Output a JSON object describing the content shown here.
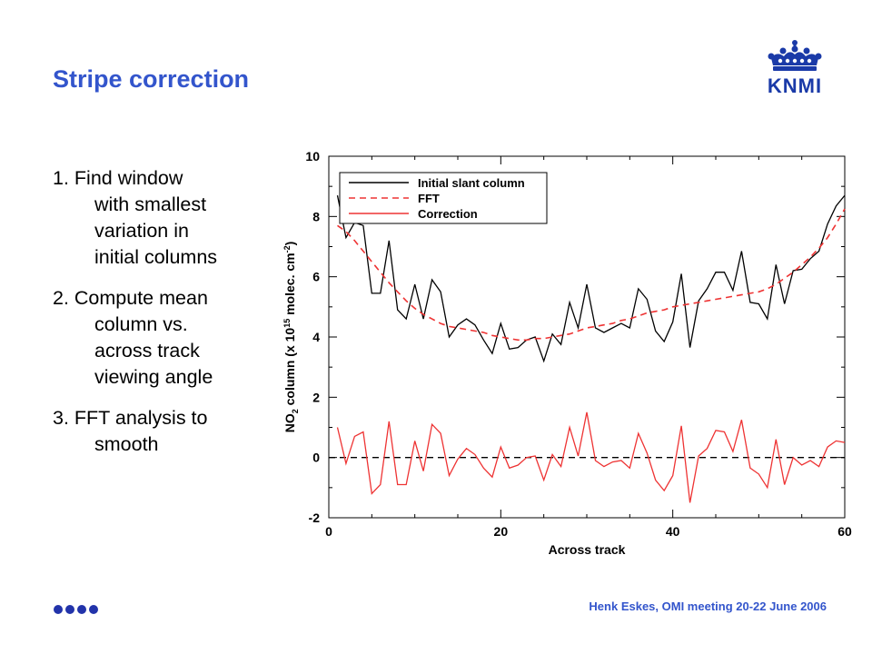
{
  "slide": {
    "title": "Stripe correction",
    "logo_text": "KNMI",
    "footer": "Henk Eskes, OMI meeting 20-22 June 2006"
  },
  "steps": [
    {
      "first": "1. Find window",
      "rest": [
        "with smallest",
        "variation in",
        "initial columns"
      ]
    },
    {
      "first": "2. Compute mean",
      "rest": [
        "column vs.",
        "across track",
        "viewing angle"
      ]
    },
    {
      "first": "3. FFT analysis to",
      "rest": [
        "smooth"
      ]
    }
  ],
  "colors": {
    "title": "#3355cc",
    "initial": "#000000",
    "fft": "#ee3333",
    "correction": "#ee3333"
  },
  "icons": [
    "crown-icon",
    "dot-icon"
  ],
  "chart_data": {
    "type": "line",
    "xlabel": "Across track",
    "ylabel": "NO",
    "ylabel_sub": "2",
    "ylabel_rest": " column (x 10",
    "ylabel_sup": "15",
    "ylabel_units": " molec. cm",
    "ylabel_units_sup": "-2",
    "ylabel_close": ")",
    "xlim": [
      0,
      60
    ],
    "ylim": [
      -2,
      10
    ],
    "xticks": [
      0,
      20,
      40,
      60
    ],
    "yticks": [
      -2,
      0,
      2,
      4,
      6,
      8,
      10
    ],
    "legend_position": "top-left",
    "zero_line": true,
    "series": [
      {
        "name": "Initial slant column",
        "style": "solid",
        "x": [
          1,
          2,
          3,
          4,
          5,
          6,
          7,
          8,
          9,
          10,
          11,
          12,
          13,
          14,
          15,
          16,
          17,
          18,
          19,
          20,
          21,
          22,
          23,
          24,
          25,
          26,
          27,
          28,
          29,
          30,
          31,
          32,
          33,
          34,
          35,
          36,
          37,
          38,
          39,
          40,
          41,
          42,
          43,
          44,
          45,
          46,
          47,
          48,
          49,
          50,
          51,
          52,
          53,
          54,
          55,
          56,
          57,
          58,
          59,
          60
        ],
        "values": [
          8.7,
          7.3,
          7.8,
          7.7,
          5.45,
          5.45,
          7.2,
          4.9,
          4.6,
          5.75,
          4.6,
          5.9,
          5.5,
          4.0,
          4.4,
          4.6,
          4.4,
          3.9,
          3.45,
          4.45,
          3.6,
          3.65,
          3.9,
          4.0,
          3.2,
          4.1,
          3.75,
          5.15,
          4.3,
          5.75,
          4.3,
          4.15,
          4.3,
          4.45,
          4.3,
          5.6,
          5.25,
          4.2,
          3.85,
          4.5,
          6.1,
          3.65,
          5.2,
          5.6,
          6.15,
          6.15,
          5.55,
          6.85,
          5.15,
          5.1,
          4.6,
          6.4,
          5.1,
          6.2,
          6.25,
          6.6,
          6.85,
          7.75,
          8.35,
          8.7
        ]
      },
      {
        "name": "FFT",
        "style": "dashed",
        "x": [
          1,
          2,
          3,
          4,
          5,
          6,
          7,
          8,
          9,
          10,
          11,
          12,
          13,
          14,
          15,
          16,
          17,
          18,
          19,
          20,
          21,
          22,
          23,
          24,
          25,
          26,
          27,
          28,
          29,
          30,
          31,
          32,
          33,
          34,
          35,
          36,
          37,
          38,
          39,
          40,
          41,
          42,
          43,
          44,
          45,
          46,
          47,
          48,
          49,
          50,
          51,
          52,
          53,
          54,
          55,
          56,
          57,
          58,
          59,
          60
        ],
        "values": [
          7.7,
          7.5,
          7.2,
          6.85,
          6.5,
          6.15,
          5.8,
          5.5,
          5.2,
          4.95,
          4.75,
          4.6,
          4.45,
          4.35,
          4.3,
          4.25,
          4.2,
          4.15,
          4.05,
          4.0,
          3.95,
          3.9,
          3.9,
          3.95,
          3.95,
          4.0,
          4.05,
          4.1,
          4.2,
          4.3,
          4.35,
          4.4,
          4.45,
          4.55,
          4.6,
          4.7,
          4.8,
          4.85,
          4.9,
          5.0,
          5.05,
          5.1,
          5.15,
          5.2,
          5.25,
          5.3,
          5.35,
          5.4,
          5.45,
          5.5,
          5.6,
          5.75,
          5.95,
          6.15,
          6.4,
          6.65,
          6.95,
          7.3,
          7.75,
          8.25
        ]
      },
      {
        "name": "Correction",
        "style": "solid",
        "x": [
          1,
          2,
          3,
          4,
          5,
          6,
          7,
          8,
          9,
          10,
          11,
          12,
          13,
          14,
          15,
          16,
          17,
          18,
          19,
          20,
          21,
          22,
          23,
          24,
          25,
          26,
          27,
          28,
          29,
          30,
          31,
          32,
          33,
          34,
          35,
          36,
          37,
          38,
          39,
          40,
          41,
          42,
          43,
          44,
          45,
          46,
          47,
          48,
          49,
          50,
          51,
          52,
          53,
          54,
          55,
          56,
          57,
          58,
          59,
          60
        ],
        "values": [
          1.0,
          -0.2,
          0.7,
          0.85,
          -1.2,
          -0.9,
          1.2,
          -0.9,
          -0.9,
          0.55,
          -0.45,
          1.1,
          0.8,
          -0.6,
          -0.05,
          0.3,
          0.1,
          -0.35,
          -0.65,
          0.35,
          -0.35,
          -0.25,
          0.0,
          0.05,
          -0.75,
          0.1,
          -0.3,
          1.0,
          0.05,
          1.5,
          -0.1,
          -0.3,
          -0.15,
          -0.1,
          -0.35,
          0.8,
          0.15,
          -0.75,
          -1.1,
          -0.6,
          1.05,
          -1.5,
          0.05,
          0.3,
          0.9,
          0.85,
          0.2,
          1.25,
          -0.35,
          -0.55,
          -1.0,
          0.6,
          -0.9,
          0.0,
          -0.25,
          -0.1,
          -0.3,
          0.35,
          0.55,
          0.5
        ]
      }
    ]
  }
}
